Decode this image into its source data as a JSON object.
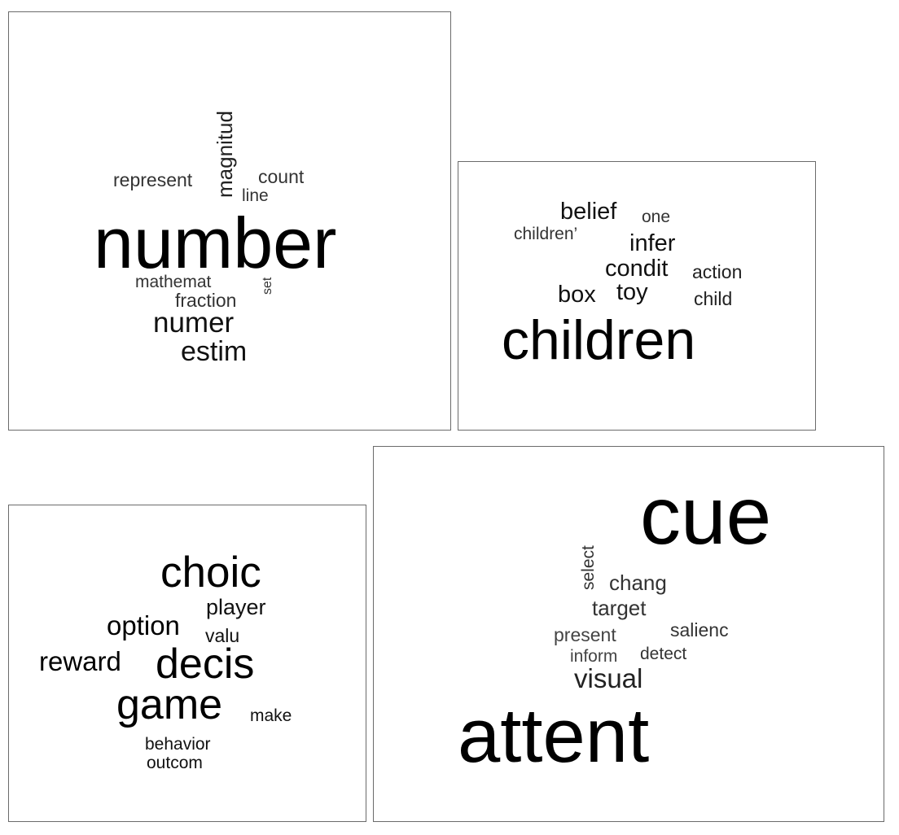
{
  "clouds": [
    {
      "words": [
        {
          "text": "number",
          "weight": 100
        },
        {
          "text": "magnitud",
          "weight": 22
        },
        {
          "text": "represent",
          "weight": 20
        },
        {
          "text": "count",
          "weight": 20
        },
        {
          "text": "line",
          "weight": 18
        },
        {
          "text": "mathemat",
          "weight": 18
        },
        {
          "text": "set",
          "weight": 14
        },
        {
          "text": "fraction",
          "weight": 20
        },
        {
          "text": "numer",
          "weight": 32
        },
        {
          "text": "estim",
          "weight": 31
        }
      ]
    },
    {
      "words": [
        {
          "text": "belief",
          "weight": 28
        },
        {
          "text": "one",
          "weight": 20
        },
        {
          "text": "children’",
          "weight": 20
        },
        {
          "text": "infer",
          "weight": 28
        },
        {
          "text": "condit",
          "weight": 28
        },
        {
          "text": "action",
          "weight": 22
        },
        {
          "text": "box",
          "weight": 28
        },
        {
          "text": "toy",
          "weight": 28
        },
        {
          "text": "child",
          "weight": 22
        },
        {
          "text": "children",
          "weight": 68
        }
      ]
    },
    {
      "words": [
        {
          "text": "choic",
          "weight": 52
        },
        {
          "text": "player",
          "weight": 26
        },
        {
          "text": "option",
          "weight": 32
        },
        {
          "text": "valu",
          "weight": 22
        },
        {
          "text": "reward",
          "weight": 32
        },
        {
          "text": "decis",
          "weight": 52
        },
        {
          "text": "game",
          "weight": 52
        },
        {
          "text": "make",
          "weight": 20
        },
        {
          "text": "behavior",
          "weight": 20
        },
        {
          "text": "outcom",
          "weight": 20
        }
      ]
    },
    {
      "words": [
        {
          "text": "cue",
          "weight": 100
        },
        {
          "text": "select",
          "weight": 20
        },
        {
          "text": "chang",
          "weight": 25
        },
        {
          "text": "target",
          "weight": 25
        },
        {
          "text": "present",
          "weight": 22
        },
        {
          "text": "salienc",
          "weight": 22
        },
        {
          "text": "inform",
          "weight": 20
        },
        {
          "text": "detect",
          "weight": 20
        },
        {
          "text": "visual",
          "weight": 31
        },
        {
          "text": "attent",
          "weight": 93
        }
      ]
    }
  ]
}
